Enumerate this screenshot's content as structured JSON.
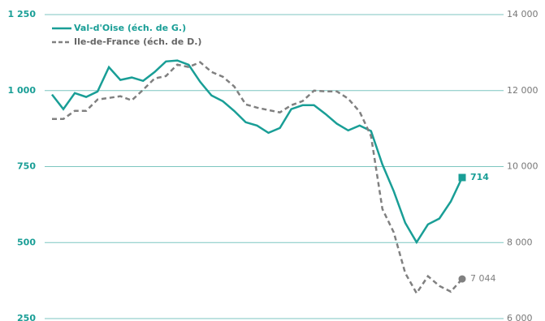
{
  "chart_data": {
    "type": "line",
    "categories": [
      null,
      null,
      null,
      null,
      null,
      null,
      null,
      null,
      null,
      null,
      null,
      null,
      null,
      null,
      null,
      null,
      null,
      null,
      null,
      null,
      null,
      null,
      null,
      null,
      null,
      null,
      null,
      null,
      null,
      null,
      null,
      null,
      null,
      null,
      null,
      null,
      null
    ],
    "series": [
      {
        "name": "Val-d'Oise (éch. de G.)",
        "color": "#199e96",
        "axis": "y",
        "marker": "square",
        "values": [
          987,
          939,
          992,
          979,
          997,
          1077,
          1035,
          1043,
          1032,
          1061,
          1096,
          1099,
          1085,
          1029,
          984,
          965,
          933,
          896,
          885,
          861,
          877,
          939,
          952,
          952,
          923,
          891,
          869,
          885,
          867,
          757,
          669,
          565,
          501,
          560,
          579,
          635,
          714
        ],
        "value_labels": [
          null,
          null,
          null,
          null,
          null,
          null,
          null,
          null,
          null,
          null,
          null,
          null,
          null,
          null,
          null,
          null,
          null,
          null,
          null,
          null,
          null,
          null,
          null,
          null,
          null,
          null,
          null,
          null,
          null,
          null,
          null,
          null,
          null,
          null,
          null,
          null,
          "714"
        ]
      },
      {
        "name": "Ile-de-France (éch. de D.)",
        "color": "#808080",
        "axis": "y2",
        "marker": "circle",
        "dashed": true,
        "values": [
          11253,
          11253,
          11467,
          11467,
          11765,
          11808,
          11851,
          11744,
          12021,
          12320,
          12384,
          12683,
          12619,
          12747,
          12491,
          12363,
          12107,
          11637,
          11552,
          11488,
          11424,
          11616,
          11723,
          12000,
          11979,
          11979,
          11787,
          11445,
          10805,
          8885,
          8267,
          7200,
          6667,
          7115,
          6859,
          6709,
          7044
        ],
        "value_labels": [
          null,
          null,
          null,
          null,
          null,
          null,
          null,
          null,
          null,
          null,
          null,
          null,
          null,
          null,
          null,
          null,
          null,
          null,
          null,
          null,
          null,
          null,
          null,
          null,
          null,
          null,
          null,
          null,
          null,
          null,
          null,
          null,
          null,
          null,
          null,
          null,
          "7 044"
        ]
      }
    ],
    "ylim": [
      250,
      1250
    ],
    "yticks": [
      250,
      500,
      750,
      {
        "value": 1000,
        "label": "1 000"
      },
      {
        "value": 1250,
        "label": "1 250"
      }
    ],
    "y2lim": [
      6000,
      14000
    ],
    "y2ticks": [
      {
        "value": 6000,
        "label": "6 000"
      },
      {
        "value": 8000,
        "label": "8 000"
      },
      {
        "value": 10000,
        "label": "10 000"
      },
      {
        "value": 12000,
        "label": "12 000"
      },
      {
        "value": 14000,
        "label": "14 000"
      }
    ],
    "grid": true,
    "legend": "top-left"
  }
}
